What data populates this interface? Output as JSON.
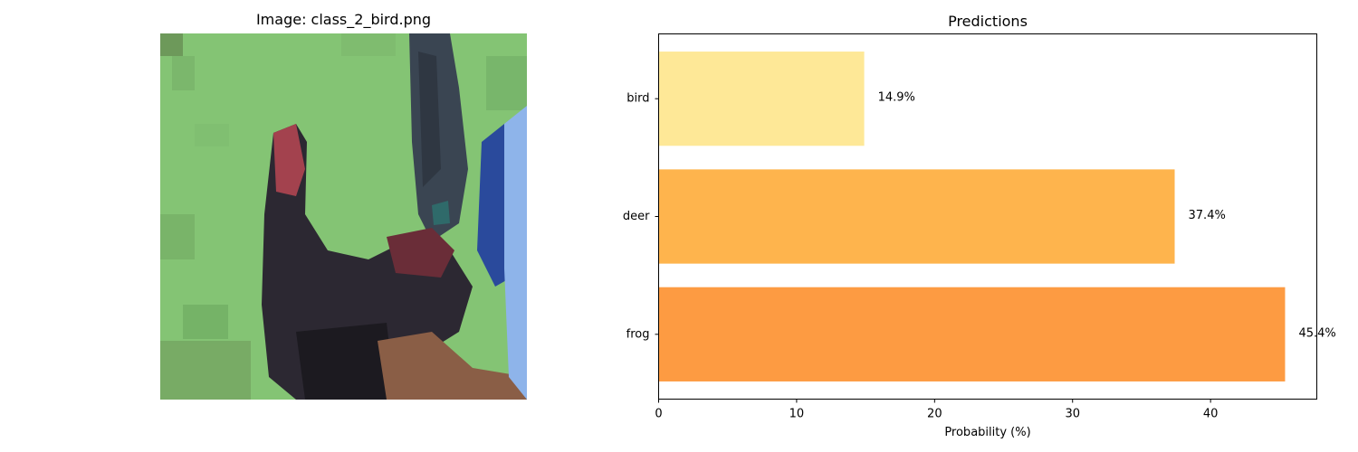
{
  "image_panel": {
    "title": "Image: class_2_bird.png",
    "image_description": "pixelated bird photo on green grass background"
  },
  "chart_data": {
    "type": "bar",
    "orientation": "horizontal",
    "title": "Predictions",
    "xlabel": "Probability (%)",
    "ylabel": "",
    "xlim": [
      0,
      47.7
    ],
    "x_ticks": [
      0,
      10,
      20,
      30,
      40
    ],
    "categories": [
      "frog",
      "deer",
      "bird"
    ],
    "values": [
      45.4,
      37.4,
      14.9
    ],
    "value_labels": [
      "45.4%",
      "37.4%",
      "14.9%"
    ],
    "colors": [
      "#fd9b42",
      "#feb44d",
      "#fee897"
    ],
    "grid": false
  }
}
